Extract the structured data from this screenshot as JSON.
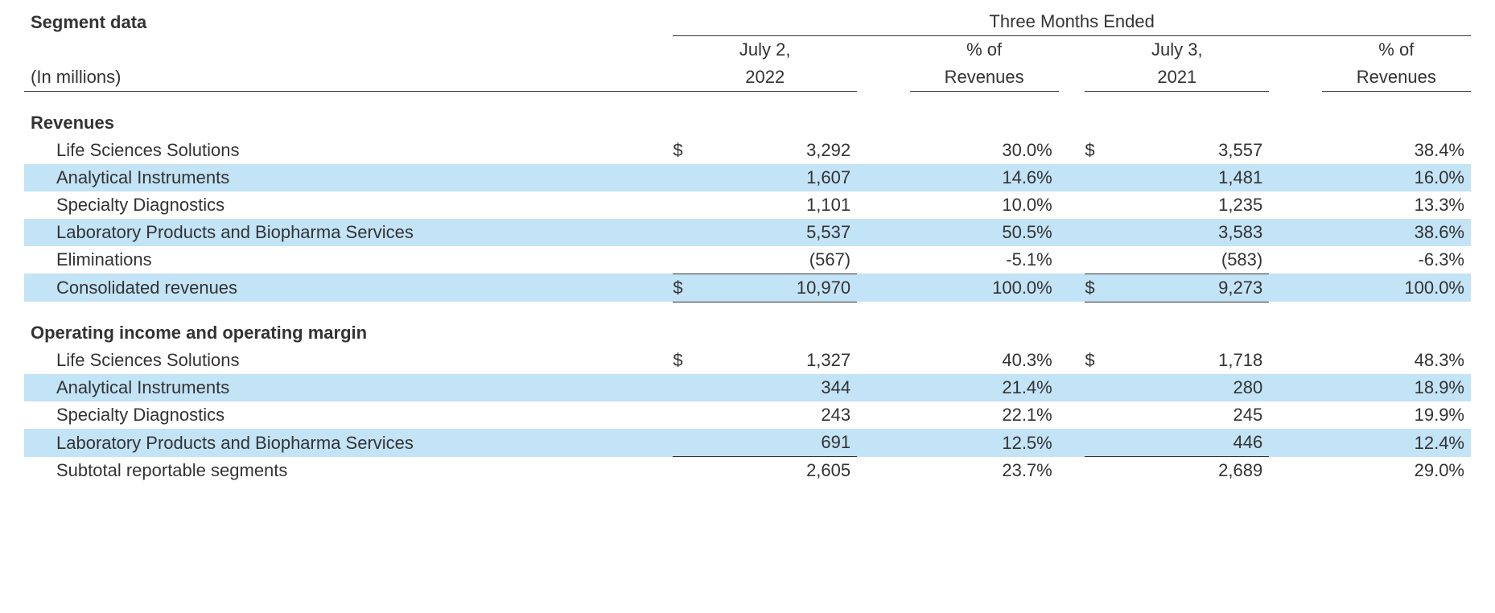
{
  "type": "financial-table",
  "colors": {
    "background": "#ffffff",
    "text": "#333333",
    "row_stripe": "#c3e3f6",
    "border": "#333333"
  },
  "typography": {
    "font_family": "Segoe UI",
    "base_fontsize_pt": 16,
    "header_weight": 600,
    "body_weight": 300
  },
  "header": {
    "title": "Segment data",
    "subtitle": "(In millions)",
    "super_header": "Three Months Ended",
    "columns": {
      "c1_line1": "July 2,",
      "c1_line2": "2022",
      "c2_line1": "% of",
      "c2_line2": "Revenues",
      "c3_line1": "July 3,",
      "c3_line2": "2021",
      "c4_line1": "% of",
      "c4_line2": "Revenues"
    }
  },
  "sections": {
    "revenues": {
      "title": "Revenues",
      "rows": [
        {
          "label": "Life Sciences Solutions",
          "cur1": "$",
          "val1": "3,292",
          "pct1": "30.0%",
          "cur2": "$",
          "val2": "3,557",
          "pct2": "38.4%"
        },
        {
          "label": "Analytical Instruments",
          "cur1": "",
          "val1": "1,607",
          "pct1": "14.6%",
          "cur2": "",
          "val2": "1,481",
          "pct2": "16.0%"
        },
        {
          "label": "Specialty Diagnostics",
          "cur1": "",
          "val1": "1,101",
          "pct1": "10.0%",
          "cur2": "",
          "val2": "1,235",
          "pct2": "13.3%"
        },
        {
          "label": "Laboratory Products and Biopharma Services",
          "cur1": "",
          "val1": "5,537",
          "pct1": "50.5%",
          "cur2": "",
          "val2": "3,583",
          "pct2": "38.6%"
        },
        {
          "label": "Eliminations",
          "cur1": "",
          "val1": "(567)",
          "pct1": "-5.1%",
          "cur2": "",
          "val2": "(583)",
          "pct2": "-6.3%"
        }
      ],
      "total": {
        "label": "Consolidated revenues",
        "cur1": "$",
        "val1": "10,970",
        "pct1": "100.0%",
        "cur2": "$",
        "val2": "9,273",
        "pct2": "100.0%"
      }
    },
    "operating": {
      "title": "Operating income and operating margin",
      "rows": [
        {
          "label": "Life Sciences Solutions",
          "cur1": "$",
          "val1": "1,327",
          "pct1": "40.3%",
          "cur2": "$",
          "val2": "1,718",
          "pct2": "48.3%"
        },
        {
          "label": "Analytical Instruments",
          "cur1": "",
          "val1": "344",
          "pct1": "21.4%",
          "cur2": "",
          "val2": "280",
          "pct2": "18.9%"
        },
        {
          "label": "Specialty Diagnostics",
          "cur1": "",
          "val1": "243",
          "pct1": "22.1%",
          "cur2": "",
          "val2": "245",
          "pct2": "19.9%"
        },
        {
          "label": "Laboratory Products and Biopharma Services",
          "cur1": "",
          "val1": "691",
          "pct1": "12.5%",
          "cur2": "",
          "val2": "446",
          "pct2": "12.4%"
        }
      ],
      "subtotal": {
        "label": "Subtotal reportable segments",
        "cur1": "",
        "val1": "2,605",
        "pct1": "23.7%",
        "cur2": "",
        "val2": "2,689",
        "pct2": "29.0%"
      }
    }
  }
}
